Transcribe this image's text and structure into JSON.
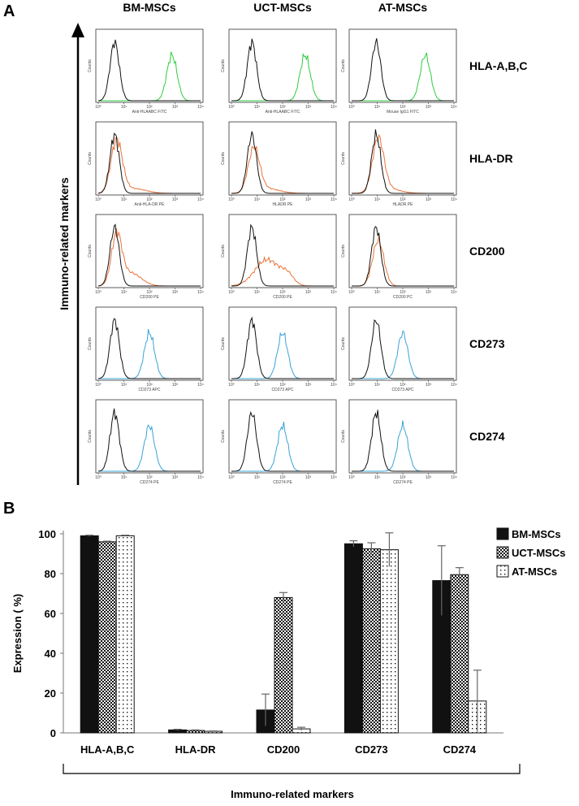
{
  "panel_a_label": "A",
  "panel_b_label": "B",
  "columns": [
    "BM-MSCs",
    "UCT-MSCs",
    "AT-MSCs"
  ],
  "side_axis_label": "Immuno-related markers",
  "colors": {
    "isotype": "#111111",
    "green": "#2ecc40",
    "orange": "#e8743b",
    "blue": "#3aa3d8"
  },
  "histogram_rows": [
    {
      "marker": "HLA-A,B,C",
      "stain_color": "green",
      "xlabels": [
        "Anti-HLAABC FITC",
        "Anti-HLAABC FITC",
        "Mouse IgG1 FITC"
      ],
      "separated": [
        true,
        true,
        true
      ]
    },
    {
      "marker": "HLA-DR",
      "stain_color": "orange",
      "xlabels": [
        "Anti-HLA-DR PE",
        "HLADR PE",
        "HLADR PE"
      ],
      "separated": [
        false,
        false,
        false
      ]
    },
    {
      "marker": "CD200",
      "stain_color": "orange",
      "xlabels": [
        "CD200 PE",
        "CD200 PE",
        "CD200 PC"
      ],
      "separated": [
        false,
        true,
        false
      ]
    },
    {
      "marker": "CD273",
      "stain_color": "blue",
      "xlabels": [
        "CD273 APC",
        "CD273 APC",
        "CD273 APC"
      ],
      "separated": [
        true,
        true,
        true
      ]
    },
    {
      "marker": "CD274",
      "stain_color": "blue",
      "xlabels": [
        "CD274 PE",
        "CD274 PE",
        "CD274 PE"
      ],
      "separated": [
        true,
        true,
        true
      ]
    }
  ],
  "histogram_axis": {
    "y_label": "Counts",
    "x_ticks": [
      "10⁰",
      "10¹",
      "10²",
      "10³",
      "10⁴"
    ]
  },
  "chart_data": {
    "type": "bar",
    "title": "",
    "xlabel": "Immuno-related markers",
    "ylabel": "Expression ( %)",
    "ylim": [
      0,
      100
    ],
    "yticks": [
      "0",
      "20",
      "40",
      "60",
      "80",
      "100"
    ],
    "categories": [
      "HLA-A,B,C",
      "HLA-DR",
      "CD200",
      "CD273",
      "CD274"
    ],
    "series": [
      {
        "name": "BM-MSCs",
        "values": [
          99,
          1.5,
          11.5,
          95,
          76.5
        ],
        "errors": [
          0.3,
          0.3,
          8,
          1.5,
          17.5
        ]
      },
      {
        "name": "UCT-MSCs",
        "values": [
          96,
          1.2,
          68,
          92.5,
          79.5
        ],
        "errors": [
          0.3,
          0.3,
          2.5,
          3,
          3.5
        ]
      },
      {
        "name": "AT-MSCs",
        "values": [
          99,
          0.8,
          2,
          92,
          16
        ],
        "errors": [
          0.3,
          0.2,
          0.8,
          8.5,
          15.5
        ]
      }
    ]
  }
}
